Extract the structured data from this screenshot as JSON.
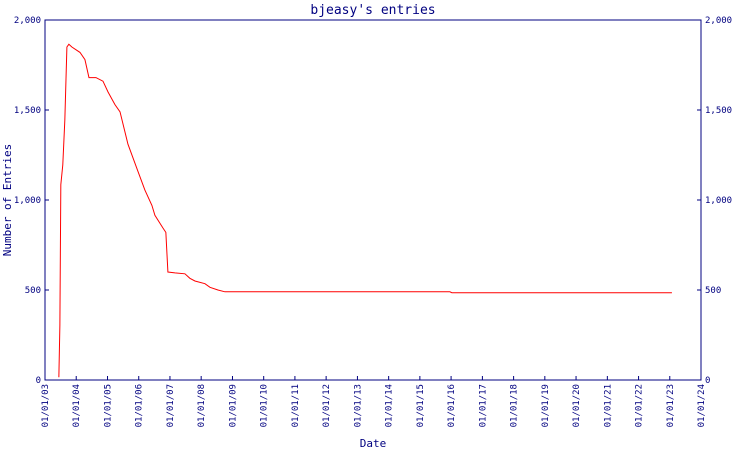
{
  "chart_data": {
    "type": "line",
    "title": "bjeasy's entries",
    "x_label": "Date",
    "y_label": "Number of Entries",
    "x": [
      "2003-06-12",
      "2003-06-24",
      "2003-07-05",
      "2003-07-28",
      "2003-08-21",
      "2003-09-14",
      "2003-10-07",
      "2003-11-11",
      "2004-02-14",
      "2004-04-12",
      "2004-05-29",
      "2004-08-19",
      "2004-11-09",
      "2005-01-07",
      "2005-03-29",
      "2005-05-27",
      "2005-08-28",
      "2005-12-22",
      "2006-03-14",
      "2006-06-04",
      "2006-07-09",
      "2006-10-10",
      "2006-11-14",
      "2006-12-08",
      "2007-02-28",
      "2007-06-25",
      "2007-08-22",
      "2007-10-20",
      "2008-02-14",
      "2008-04-13",
      "2008-07-15",
      "2008-10-05",
      "2015-12-18",
      "2016-01-10",
      "2023-01-26"
    ],
    "series": [
      {
        "name": "entries",
        "color": "#ff0000",
        "values": [
          15,
          305,
          1085,
          1195,
          1445,
          1850,
          1865,
          1850,
          1820,
          1780,
          1680,
          1680,
          1660,
          1600,
          1530,
          1490,
          1310,
          1160,
          1055,
          970,
          915,
          845,
          820,
          600,
          595,
          590,
          565,
          550,
          535,
          515,
          500,
          490,
          490,
          485,
          485
        ]
      }
    ],
    "xlim": [
      "2003-01-01",
      "2024-01-01"
    ],
    "xticks": [
      {
        "value": "2003-01-01",
        "label": "01/01/03"
      },
      {
        "value": "2004-01-01",
        "label": "01/01/04"
      },
      {
        "value": "2005-01-01",
        "label": "01/01/05"
      },
      {
        "value": "2006-01-01",
        "label": "01/01/06"
      },
      {
        "value": "2007-01-01",
        "label": "01/01/07"
      },
      {
        "value": "2008-01-01",
        "label": "01/01/08"
      },
      {
        "value": "2009-01-01",
        "label": "01/01/09"
      },
      {
        "value": "2010-01-01",
        "label": "01/01/10"
      },
      {
        "value": "2011-01-01",
        "label": "01/01/11"
      },
      {
        "value": "2012-01-01",
        "label": "01/01/12"
      },
      {
        "value": "2013-01-01",
        "label": "01/01/13"
      },
      {
        "value": "2014-01-01",
        "label": "01/01/14"
      },
      {
        "value": "2015-01-01",
        "label": "01/01/15"
      },
      {
        "value": "2016-01-01",
        "label": "01/01/16"
      },
      {
        "value": "2017-01-01",
        "label": "01/01/17"
      },
      {
        "value": "2018-01-01",
        "label": "01/01/18"
      },
      {
        "value": "2019-01-01",
        "label": "01/01/19"
      },
      {
        "value": "2020-01-01",
        "label": "01/01/20"
      },
      {
        "value": "2021-01-01",
        "label": "01/01/21"
      },
      {
        "value": "2022-01-01",
        "label": "01/01/22"
      },
      {
        "value": "2023-01-01",
        "label": "01/01/23"
      },
      {
        "value": "2024-01-01",
        "label": "01/01/24"
      }
    ],
    "ylim": [
      0,
      2000
    ],
    "yticks": [
      0,
      500,
      {
        "value": 1000,
        "label": "1,000"
      },
      {
        "value": 1500,
        "label": "1,500"
      },
      {
        "value": 2000,
        "label": "2,000"
      }
    ],
    "y2lim": [
      0,
      2000
    ],
    "y2ticks": [
      0,
      500,
      {
        "value": 1000,
        "label": "1,000"
      },
      {
        "value": 1500,
        "label": "1,500"
      },
      {
        "value": 2000,
        "label": "2,000"
      }
    ],
    "axis_color": "#000080",
    "grid": false
  }
}
